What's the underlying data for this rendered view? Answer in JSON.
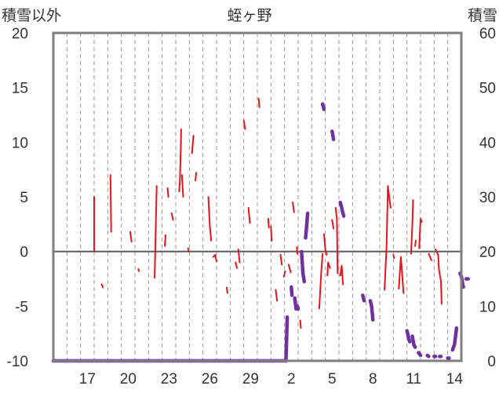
{
  "chart_data": {
    "type": "line",
    "title": "蛭ヶ野",
    "left_axis_label": "積雪以外",
    "right_axis_label": "積雪",
    "left_ylim": [
      -10,
      20
    ],
    "right_ylim": [
      0,
      60
    ],
    "left_ticks": [
      "20",
      "15",
      "10",
      "5",
      "0",
      "-5",
      "-10"
    ],
    "right_ticks": [
      "60",
      "50",
      "40",
      "30",
      "20",
      "10",
      "0"
    ],
    "x_ticks": [
      {
        "label": "17",
        "day": 2
      },
      {
        "label": "20",
        "day": 5
      },
      {
        "label": "23",
        "day": 8
      },
      {
        "label": "26",
        "day": 11
      },
      {
        "label": "29",
        "day": 14
      },
      {
        "label": "2",
        "day": 17
      },
      {
        "label": "5",
        "day": 20
      },
      {
        "label": "8",
        "day": 23
      },
      {
        "label": "11",
        "day": 26
      },
      {
        "label": "14",
        "day": 29
      }
    ],
    "x_range_days": [
      0,
      30
    ],
    "grid": "vertical-dashed",
    "zero_line": 0,
    "colors": {
      "temperature": "#e8141b",
      "snow_depth": "#7030a0",
      "frame": "#7f7f7f",
      "zero_line": "#595959"
    },
    "series": [
      {
        "axis": "left",
        "color": "#e8141b",
        "segments": [
          [
            [
              3.0,
              0
            ],
            [
              3.0,
              5
            ]
          ],
          [
            [
              3.55,
              -3.0
            ],
            [
              3.65,
              -3.3
            ]
          ],
          [
            [
              4.2,
              7.0
            ],
            [
              4.25,
              1.8
            ]
          ],
          [
            [
              5.65,
              1.8
            ],
            [
              5.75,
              0.9
            ]
          ],
          [
            [
              6.25,
              -1.6
            ],
            [
              6.3,
              -1.8
            ]
          ],
          [
            [
              7.45,
              -2.4
            ],
            [
              7.6,
              6.0
            ]
          ],
          [
            [
              8.2,
              0.5
            ],
            [
              8.25,
              1.5
            ]
          ],
          [
            [
              8.4,
              5.8
            ],
            [
              8.45,
              5.0
            ]
          ],
          [
            [
              8.7,
              3.5
            ],
            [
              8.8,
              2.9
            ]
          ],
          [
            [
              9.25,
              5.5
            ],
            [
              9.3,
              6.4
            ],
            [
              9.35,
              8.5
            ],
            [
              9.4,
              11.2
            ]
          ],
          [
            [
              9.45,
              7.0
            ],
            [
              9.55,
              5.0
            ]
          ],
          [
            [
              9.9,
              0.3
            ],
            [
              9.95,
              0.0
            ]
          ],
          [
            [
              10.2,
              9.0
            ],
            [
              10.3,
              10.6
            ]
          ],
          [
            [
              10.45,
              6.5
            ],
            [
              10.5,
              7.2
            ]
          ],
          [
            [
              11.4,
              5.0
            ],
            [
              11.5,
              2.5
            ],
            [
              11.6,
              1.0
            ]
          ],
          [
            [
              11.75,
              -0.5
            ],
            [
              11.9,
              -0.3
            ],
            [
              12.0,
              -0.9
            ]
          ],
          [
            [
              12.75,
              -3.3
            ],
            [
              12.8,
              -3.8
            ]
          ],
          [
            [
              13.4,
              -1.0
            ],
            [
              13.5,
              -1.5
            ]
          ],
          [
            [
              13.6,
              0.2
            ],
            [
              13.7,
              -1.0
            ]
          ],
          [
            [
              14.0,
              12.0
            ],
            [
              14.1,
              11.2
            ]
          ],
          [
            [
              14.35,
              4.0
            ],
            [
              14.45,
              2.6
            ]
          ],
          [
            [
              15.1,
              14.0
            ],
            [
              15.15,
              13.2
            ]
          ],
          [
            [
              15.8,
              3.0
            ],
            [
              15.85,
              2.2
            ]
          ],
          [
            [
              16.0,
              2.3
            ],
            [
              16.05,
              1.0
            ]
          ],
          [
            [
              16.35,
              -3.5
            ],
            [
              16.45,
              -4.5
            ]
          ],
          [
            [
              16.7,
              -0.3
            ],
            [
              16.8,
              -1.2
            ]
          ],
          [
            [
              16.95,
              -2.3
            ],
            [
              17.05,
              -1.8
            ]
          ],
          [
            [
              17.3,
              -1.2
            ],
            [
              17.45,
              -1.9
            ]
          ],
          [
            [
              17.6,
              4.5
            ],
            [
              17.7,
              3.6
            ]
          ],
          [
            [
              17.9,
              0.4
            ],
            [
              17.95,
              -0.2
            ]
          ],
          [
            [
              18.15,
              -6.3
            ],
            [
              18.2,
              -7.0
            ]
          ],
          [
            [
              19.55,
              -5.2
            ],
            [
              19.7,
              -1.8
            ],
            [
              19.8,
              -0.2
            ]
          ],
          [
            [
              19.9,
              1.6
            ],
            [
              20.0,
              0.2
            ],
            [
              20.1,
              -0.3
            ]
          ],
          [
            [
              20.15,
              -2.2
            ],
            [
              20.2,
              -1.0
            ],
            [
              20.35,
              -1.5
            ]
          ],
          [
            [
              20.5,
              2.9
            ],
            [
              20.6,
              2.1
            ]
          ],
          [
            [
              20.75,
              4.0
            ],
            [
              20.85,
              3.0
            ],
            [
              20.9,
              -2.0
            ]
          ],
          [
            [
              21.1,
              -2.2
            ],
            [
              21.2,
              -1.3
            ],
            [
              21.3,
              -3.0
            ]
          ],
          [
            [
              24.35,
              -3.5
            ],
            [
              24.5,
              0.5
            ],
            [
              24.6,
              6.0
            ],
            [
              24.7,
              5.0
            ],
            [
              24.8,
              4.0
            ]
          ],
          [
            [
              25.0,
              -0.3
            ],
            [
              25.05,
              -0.6
            ]
          ],
          [
            [
              25.4,
              -3.4
            ],
            [
              25.55,
              -0.5
            ],
            [
              25.6,
              -1.2
            ],
            [
              25.75,
              -3.8
            ]
          ],
          [
            [
              26.3,
              -0.2
            ],
            [
              26.4,
              2.5
            ],
            [
              26.45,
              4.7
            ]
          ],
          [
            [
              26.6,
              0.5
            ],
            [
              26.65,
              1.0
            ]
          ],
          [
            [
              26.9,
              0.3
            ],
            [
              27.0,
              3.0
            ],
            [
              27.1,
              2.7
            ]
          ],
          [
            [
              27.6,
              -0.2
            ],
            [
              27.8,
              -0.8
            ]
          ],
          [
            [
              28.1,
              0.2
            ],
            [
              28.3,
              -0.3
            ],
            [
              28.35,
              -1.6
            ],
            [
              28.5,
              -2.7
            ],
            [
              28.55,
              -4.8
            ]
          ]
        ]
      },
      {
        "axis": "right",
        "color": "#7030a0",
        "segments": [
          [
            [
              0.0,
              0
            ],
            [
              17.1,
              0
            ]
          ],
          [
            [
              17.1,
              0
            ],
            [
              17.15,
              4
            ],
            [
              17.2,
              8
            ]
          ],
          [
            [
              17.5,
              13.5
            ],
            [
              17.55,
              12
            ]
          ],
          [
            [
              17.75,
              11.5
            ],
            [
              17.85,
              9.5
            ]
          ],
          [
            [
              17.95,
              10
            ],
            [
              18.0,
              9.5
            ]
          ],
          [
            [
              18.25,
              20
            ],
            [
              18.35,
              16
            ],
            [
              18.45,
              14.5
            ]
          ],
          [
            [
              18.55,
              22.5
            ],
            [
              18.65,
              25.5
            ],
            [
              18.7,
              27
            ]
          ],
          [
            [
              19.8,
              47
            ],
            [
              19.9,
              46
            ]
          ],
          [
            [
              20.5,
              42
            ],
            [
              20.6,
              40.5
            ]
          ],
          [
            [
              21.1,
              29
            ],
            [
              21.2,
              28
            ],
            [
              21.25,
              27.5
            ],
            [
              21.35,
              26.5
            ]
          ],
          [
            [
              22.75,
              12
            ],
            [
              22.85,
              11
            ]
          ],
          [
            [
              23.3,
              11
            ],
            [
              23.4,
              10
            ],
            [
              23.5,
              7.5
            ]
          ],
          [
            [
              26.0,
              5.5
            ],
            [
              26.1,
              4.5
            ],
            [
              26.2,
              3.5
            ]
          ],
          [
            [
              26.4,
              4.5
            ],
            [
              26.5,
              3
            ],
            [
              26.6,
              2.5
            ]
          ],
          [
            [
              26.85,
              1.5
            ],
            [
              27.0,
              1.0
            ]
          ],
          [
            [
              27.5,
              1.0
            ],
            [
              27.6,
              0.8
            ]
          ],
          [
            [
              28.0,
              0.8
            ],
            [
              28.1,
              0.8
            ]
          ],
          [
            [
              28.4,
              0.8
            ],
            [
              28.5,
              0.8
            ]
          ],
          [
            [
              29.0,
              0.5
            ],
            [
              29.1,
              0.5
            ]
          ],
          [
            [
              29.35,
              2.0
            ],
            [
              29.5,
              3.0
            ],
            [
              29.65,
              6.0
            ]
          ],
          [
            [
              29.9,
              16.0
            ],
            [
              30.0,
              15.5
            ],
            [
              30.1,
              14.0
            ],
            [
              30.15,
              13.5
            ]
          ],
          [
            [
              30.35,
              15.0
            ],
            [
              30.5,
              15.0
            ]
          ]
        ]
      }
    ]
  }
}
